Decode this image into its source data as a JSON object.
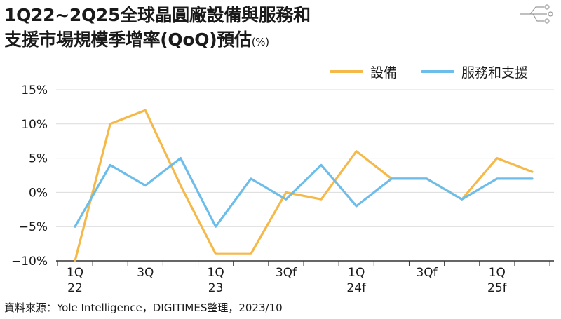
{
  "header": {
    "title_line1": "1Q22~2Q25全球晶圓廠設備與服務和",
    "title_line2": "支援市場規模季增率(QoQ)預估",
    "unit": "(%)"
  },
  "legend": [
    {
      "label": "設備",
      "color": "#F5B94A"
    },
    {
      "label": "服務和支援",
      "color": "#6CBDE9"
    }
  ],
  "footer": {
    "source": "資料來源：Yole Intelligence，DIGITIMES整理，2023/10"
  },
  "chart_data": {
    "type": "line",
    "y_tick_labels": [
      "15%",
      "10%",
      "5%",
      "0%",
      "−5%",
      "−10%"
    ],
    "y_ticks": [
      15,
      10,
      5,
      0,
      -5,
      -10
    ],
    "ylim": [
      -10,
      15
    ],
    "x_tick_labels": [
      {
        "index": 0,
        "lines": [
          "1Q",
          "22"
        ]
      },
      {
        "index": 2,
        "lines": [
          "3Q",
          ""
        ]
      },
      {
        "index": 4,
        "lines": [
          "1Q",
          "23"
        ]
      },
      {
        "index": 6,
        "lines": [
          "3Qf",
          ""
        ]
      },
      {
        "index": 8,
        "lines": [
          "1Q",
          "24f"
        ]
      },
      {
        "index": 10,
        "lines": [
          "3Qf",
          ""
        ]
      },
      {
        "index": 12,
        "lines": [
          "1Q",
          "25f"
        ]
      }
    ],
    "x_count": 14,
    "grid": "horizontal",
    "series": [
      {
        "name": "設備",
        "color": "#F5B94A",
        "values": [
          -10,
          10,
          12,
          1,
          -9,
          -9,
          0,
          -1,
          6,
          2,
          2,
          -1,
          5,
          3
        ]
      },
      {
        "name": "服務和支援",
        "color": "#6CBDE9",
        "values": [
          -5,
          4,
          1,
          5,
          -5,
          2,
          -1,
          4,
          -2,
          2,
          2,
          -1,
          2,
          2
        ]
      }
    ]
  }
}
